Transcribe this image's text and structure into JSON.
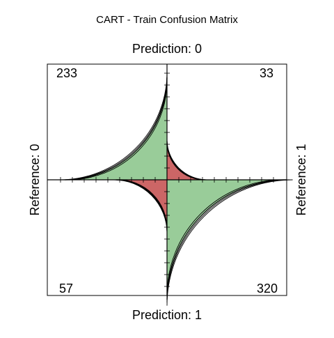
{
  "chart_data": {
    "type": "fourfold",
    "title": "CART - Train Confusion Matrix",
    "top_label": "Prediction: 0",
    "bottom_label": "Prediction: 1",
    "left_label": "Reference: 0",
    "right_label": "Reference: 1",
    "cells": [
      {
        "prediction": "0",
        "reference": "0",
        "count": 233
      },
      {
        "prediction": "0",
        "reference": "1",
        "count": 33
      },
      {
        "prediction": "1",
        "reference": "0",
        "count": 57
      },
      {
        "prediction": "1",
        "reference": "1",
        "count": 320
      }
    ],
    "colors": {
      "correct": "#99CC99",
      "incorrect": "#CC6666",
      "outline": "#000000"
    }
  }
}
